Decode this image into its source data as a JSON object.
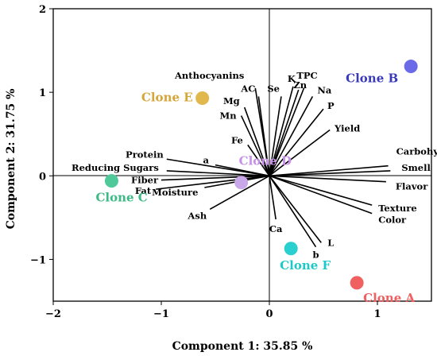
{
  "chart_data": {
    "type": "scatter",
    "xlabel": "Component 1: 35.85 %",
    "ylabel": "Component 2: 31.75 %",
    "xlim": [
      -2,
      1.5
    ],
    "ylim": [
      -1.5,
      2
    ],
    "xticks": [
      "−2",
      "−1",
      "0",
      "1"
    ],
    "yticks": [
      "−1",
      "0",
      "1",
      "2"
    ],
    "xtick_values": [
      -2,
      -1,
      0,
      1
    ],
    "ytick_values": [
      -1,
      0,
      1,
      2
    ],
    "loadings": [
      {
        "name": "Anthocyanins",
        "x": -0.13,
        "y": 1.05
      },
      {
        "name": "AC",
        "x": -0.1,
        "y": 0.95
      },
      {
        "name": "Mg",
        "x": -0.23,
        "y": 0.82
      },
      {
        "name": "Mn",
        "x": -0.26,
        "y": 0.72
      },
      {
        "name": "Se",
        "x": 0.11,
        "y": 0.95
      },
      {
        "name": "K",
        "x": 0.22,
        "y": 1.07
      },
      {
        "name": "Zn",
        "x": 0.27,
        "y": 1.03
      },
      {
        "name": "TPC",
        "x": 0.32,
        "y": 1.05
      },
      {
        "name": "Na",
        "x": 0.4,
        "y": 0.95
      },
      {
        "name": "P",
        "x": 0.5,
        "y": 0.8
      },
      {
        "name": "Yield",
        "x": 0.56,
        "y": 0.55
      },
      {
        "name": "Fe",
        "x": -0.2,
        "y": 0.37
      },
      {
        "name": "Protein",
        "x": -0.95,
        "y": 0.2
      },
      {
        "name": "a",
        "x": -0.5,
        "y": 0.13
      },
      {
        "name": "Reducing Sugars",
        "x": -0.95,
        "y": 0.06
      },
      {
        "name": "Fiber",
        "x": -1.0,
        "y": -0.05
      },
      {
        "name": "Fat",
        "x": -1.05,
        "y": -0.16
      },
      {
        "name": "Moisture",
        "x": -0.6,
        "y": -0.14
      },
      {
        "name": "Ash",
        "x": -0.55,
        "y": -0.4
      },
      {
        "name": "Ca",
        "x": 0.06,
        "y": -0.52
      },
      {
        "name": "b",
        "x": 0.43,
        "y": -0.85
      },
      {
        "name": "L",
        "x": 0.48,
        "y": -0.8
      },
      {
        "name": "Carbohydrate",
        "x": 1.1,
        "y": 0.12
      },
      {
        "name": "Smell",
        "x": 1.12,
        "y": 0.06
      },
      {
        "name": "Flavor",
        "x": 1.08,
        "y": -0.07
      },
      {
        "name": "Texture",
        "x": 0.95,
        "y": -0.35
      },
      {
        "name": "Color",
        "x": 0.95,
        "y": -0.45
      }
    ],
    "series": [
      {
        "name": "Clone A",
        "x": 0.81,
        "y": -1.28,
        "color": "#f06060"
      },
      {
        "name": "Clone B",
        "x": 1.31,
        "y": 1.31,
        "color": "#6a6ae8"
      },
      {
        "name": "Clone C",
        "x": -1.46,
        "y": -0.06,
        "color": "#4fc99a"
      },
      {
        "name": "Clone D",
        "x": -0.26,
        "y": -0.08,
        "color": "#c8a8e8"
      },
      {
        "name": "Clone E",
        "x": -0.62,
        "y": 0.93,
        "color": "#e0b84e"
      },
      {
        "name": "Clone F",
        "x": 0.2,
        "y": -0.87,
        "color": "#2ad0d0"
      }
    ],
    "label_colors": {
      "Clone A": "#f06060",
      "Clone B": "#3a3ab8",
      "Clone C": "#3cba86",
      "Clone D": "#c890e8",
      "Clone E": "#d4a63a",
      "Clone F": "#1ec8c8"
    }
  }
}
